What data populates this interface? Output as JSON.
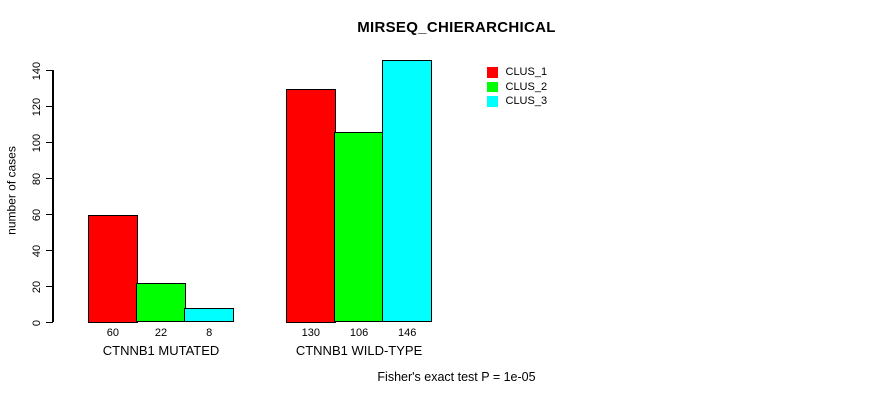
{
  "chart_data": {
    "type": "bar",
    "title": "MIRSEQ_CHIERARCHICAL",
    "ylabel": "number of cases",
    "xlabel": "",
    "categories": [
      "CTNNB1 MUTATED",
      "CTNNB1 WILD-TYPE"
    ],
    "series": [
      {
        "name": "CLUS_1",
        "color": "#FF0000",
        "values": [
          60,
          130
        ]
      },
      {
        "name": "CLUS_2",
        "color": "#00FF00",
        "values": [
          22,
          106
        ]
      },
      {
        "name": "CLUS_3",
        "color": "#00FFFF",
        "values": [
          8,
          146
        ]
      }
    ],
    "yticks": [
      0,
      20,
      40,
      60,
      80,
      100,
      120,
      140
    ],
    "ylim": [
      0,
      146
    ],
    "grid": false,
    "value_labels_shown": true,
    "legend_position": "top-right",
    "bar_border_color": "#000000",
    "background_color": "#FFFFFF",
    "annotation": "Fisher's exact test P = 1e-05"
  }
}
